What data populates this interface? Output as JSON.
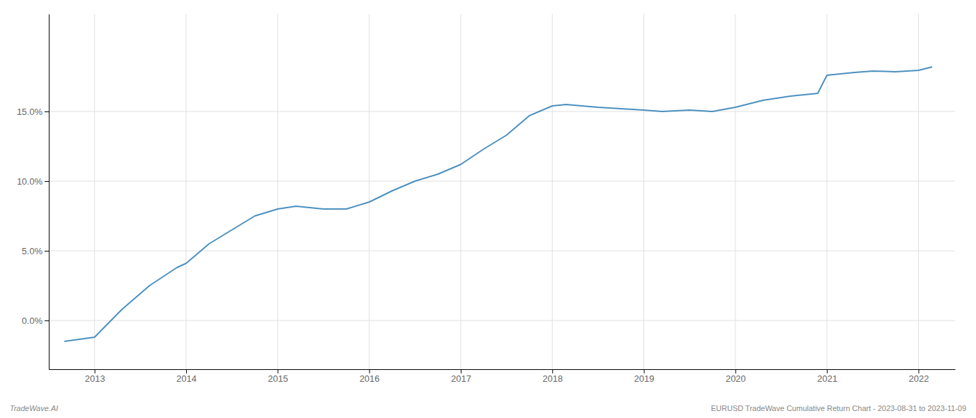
{
  "chart_data": {
    "type": "line",
    "x": [
      2012.67,
      2013.0,
      2013.3,
      2013.6,
      2013.9,
      2014.0,
      2014.25,
      2014.5,
      2014.75,
      2015.0,
      2015.2,
      2015.5,
      2015.75,
      2016.0,
      2016.25,
      2016.5,
      2016.75,
      2017.0,
      2017.25,
      2017.5,
      2017.75,
      2018.0,
      2018.15,
      2018.5,
      2018.75,
      2019.0,
      2019.2,
      2019.5,
      2019.75,
      2020.0,
      2020.3,
      2020.6,
      2020.9,
      2021.0,
      2021.3,
      2021.5,
      2021.75,
      2022.0,
      2022.15
    ],
    "values": [
      -1.5,
      -1.2,
      0.8,
      2.5,
      3.8,
      4.1,
      5.5,
      6.5,
      7.5,
      8.0,
      8.2,
      8.0,
      8.0,
      8.5,
      9.3,
      10.0,
      10.5,
      11.2,
      12.3,
      13.3,
      14.7,
      15.4,
      15.5,
      15.3,
      15.2,
      15.1,
      15.0,
      15.1,
      15.0,
      15.3,
      15.8,
      16.1,
      16.3,
      17.6,
      17.8,
      17.9,
      17.85,
      17.95,
      18.2
    ],
    "color": "#4a8fc0",
    "xlim": [
      2012.5,
      2022.4
    ],
    "ylim": [
      -3.5,
      22.0
    ],
    "xticks": [
      2013,
      2014,
      2015,
      2016,
      2017,
      2018,
      2019,
      2020,
      2021,
      2022
    ],
    "yticks": [
      {
        "value": 0.0,
        "label": "0.0%"
      },
      {
        "value": 5.0,
        "label": "5.0%"
      },
      {
        "value": 10.0,
        "label": "10.0%"
      },
      {
        "value": 15.0,
        "label": "15.0%"
      }
    ],
    "grid": true,
    "annotations": [
      "TradeWave.AI",
      "EURUSD TradeWave Cumulative Return Chart - 2023-08-31 to 2023-11-09"
    ]
  }
}
